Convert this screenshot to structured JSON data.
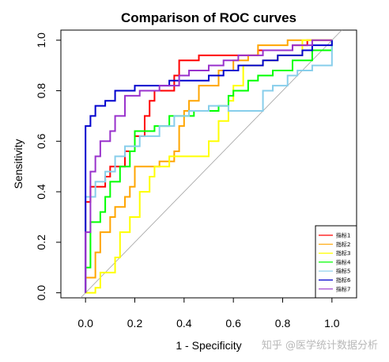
{
  "chart_data": {
    "type": "line",
    "title": "Comparison of ROC curves",
    "xlabel": "1 - Specificity",
    "ylabel": "Sensitivity",
    "xlim": [
      -0.1,
      1.1
    ],
    "ylim": [
      -0.02,
      1.04
    ],
    "x_ticks": [
      "0.0",
      "0.2",
      "0.4",
      "0.6",
      "0.8",
      "1.0"
    ],
    "y_ticks": [
      "0.0",
      "0.2",
      "0.4",
      "0.6",
      "0.8",
      "1.0"
    ],
    "x_tick_values": [
      0,
      0.2,
      0.4,
      0.6,
      0.8,
      1.0
    ],
    "y_tick_values": [
      0,
      0.2,
      0.4,
      0.6,
      0.8,
      1.0
    ],
    "reference_line": "diagonal",
    "legend_placement": "bottom-right",
    "series": [
      {
        "name": "指标1",
        "color": "#ff0000",
        "points": [
          [
            0,
            0
          ],
          [
            0,
            0.36
          ],
          [
            0.02,
            0.36
          ],
          [
            0.02,
            0.42
          ],
          [
            0.08,
            0.42
          ],
          [
            0.08,
            0.46
          ],
          [
            0.1,
            0.46
          ],
          [
            0.1,
            0.5
          ],
          [
            0.16,
            0.5
          ],
          [
            0.16,
            0.56
          ],
          [
            0.2,
            0.56
          ],
          [
            0.2,
            0.62
          ],
          [
            0.24,
            0.62
          ],
          [
            0.24,
            0.7
          ],
          [
            0.26,
            0.7
          ],
          [
            0.26,
            0.76
          ],
          [
            0.28,
            0.76
          ],
          [
            0.28,
            0.8
          ],
          [
            0.36,
            0.8
          ],
          [
            0.36,
            0.86
          ],
          [
            0.38,
            0.86
          ],
          [
            0.38,
            0.92
          ],
          [
            0.46,
            0.92
          ],
          [
            0.46,
            0.94
          ],
          [
            0.7,
            0.94
          ],
          [
            0.7,
            0.96
          ],
          [
            0.84,
            0.96
          ],
          [
            0.84,
            0.98
          ],
          [
            0.9,
            0.98
          ],
          [
            0.9,
            1.0
          ],
          [
            1.0,
            1.0
          ]
        ]
      },
      {
        "name": "指标2",
        "color": "#ffa500",
        "points": [
          [
            0,
            0
          ],
          [
            0,
            0.06
          ],
          [
            0.04,
            0.06
          ],
          [
            0.04,
            0.16
          ],
          [
            0.06,
            0.16
          ],
          [
            0.06,
            0.24
          ],
          [
            0.1,
            0.24
          ],
          [
            0.1,
            0.3
          ],
          [
            0.12,
            0.3
          ],
          [
            0.12,
            0.34
          ],
          [
            0.16,
            0.34
          ],
          [
            0.16,
            0.38
          ],
          [
            0.18,
            0.38
          ],
          [
            0.18,
            0.42
          ],
          [
            0.2,
            0.42
          ],
          [
            0.2,
            0.5
          ],
          [
            0.3,
            0.5
          ],
          [
            0.3,
            0.52
          ],
          [
            0.36,
            0.52
          ],
          [
            0.36,
            0.56
          ],
          [
            0.38,
            0.56
          ],
          [
            0.38,
            0.66
          ],
          [
            0.4,
            0.66
          ],
          [
            0.4,
            0.72
          ],
          [
            0.42,
            0.72
          ],
          [
            0.42,
            0.76
          ],
          [
            0.46,
            0.76
          ],
          [
            0.46,
            0.82
          ],
          [
            0.54,
            0.82
          ],
          [
            0.54,
            0.88
          ],
          [
            0.6,
            0.88
          ],
          [
            0.6,
            0.92
          ],
          [
            0.66,
            0.92
          ],
          [
            0.66,
            0.94
          ],
          [
            0.7,
            0.94
          ],
          [
            0.7,
            0.98
          ],
          [
            0.82,
            0.98
          ],
          [
            0.82,
            1.0
          ],
          [
            1.0,
            1.0
          ]
        ]
      },
      {
        "name": "指标3",
        "color": "#ffff00",
        "points": [
          [
            0,
            0
          ],
          [
            0.04,
            0
          ],
          [
            0.04,
            0.02
          ],
          [
            0.06,
            0.02
          ],
          [
            0.06,
            0.08
          ],
          [
            0.12,
            0.08
          ],
          [
            0.12,
            0.14
          ],
          [
            0.14,
            0.14
          ],
          [
            0.14,
            0.24
          ],
          [
            0.18,
            0.24
          ],
          [
            0.18,
            0.3
          ],
          [
            0.22,
            0.3
          ],
          [
            0.22,
            0.4
          ],
          [
            0.26,
            0.4
          ],
          [
            0.26,
            0.46
          ],
          [
            0.28,
            0.46
          ],
          [
            0.28,
            0.5
          ],
          [
            0.34,
            0.5
          ],
          [
            0.34,
            0.54
          ],
          [
            0.5,
            0.54
          ],
          [
            0.5,
            0.6
          ],
          [
            0.54,
            0.6
          ],
          [
            0.54,
            0.68
          ],
          [
            0.58,
            0.68
          ],
          [
            0.58,
            0.76
          ],
          [
            0.6,
            0.76
          ],
          [
            0.6,
            0.82
          ],
          [
            0.64,
            0.82
          ],
          [
            0.64,
            0.9
          ],
          [
            0.72,
            0.9
          ],
          [
            0.72,
            0.92
          ],
          [
            0.78,
            0.92
          ],
          [
            0.78,
            0.94
          ],
          [
            0.88,
            0.94
          ],
          [
            0.88,
            1.0
          ],
          [
            1.0,
            1.0
          ]
        ]
      },
      {
        "name": "指标4",
        "color": "#00ff00",
        "points": [
          [
            0,
            0
          ],
          [
            0,
            0.1
          ],
          [
            0.02,
            0.1
          ],
          [
            0.02,
            0.28
          ],
          [
            0.06,
            0.28
          ],
          [
            0.06,
            0.32
          ],
          [
            0.08,
            0.32
          ],
          [
            0.08,
            0.38
          ],
          [
            0.1,
            0.38
          ],
          [
            0.1,
            0.44
          ],
          [
            0.14,
            0.44
          ],
          [
            0.14,
            0.5
          ],
          [
            0.18,
            0.5
          ],
          [
            0.18,
            0.56
          ],
          [
            0.2,
            0.56
          ],
          [
            0.2,
            0.64
          ],
          [
            0.28,
            0.64
          ],
          [
            0.28,
            0.66
          ],
          [
            0.34,
            0.66
          ],
          [
            0.34,
            0.7
          ],
          [
            0.44,
            0.7
          ],
          [
            0.44,
            0.72
          ],
          [
            0.54,
            0.72
          ],
          [
            0.54,
            0.74
          ],
          [
            0.58,
            0.74
          ],
          [
            0.58,
            0.78
          ],
          [
            0.6,
            0.78
          ],
          [
            0.6,
            0.8
          ],
          [
            0.66,
            0.8
          ],
          [
            0.66,
            0.84
          ],
          [
            0.7,
            0.84
          ],
          [
            0.7,
            0.86
          ],
          [
            0.76,
            0.86
          ],
          [
            0.76,
            0.88
          ],
          [
            0.84,
            0.88
          ],
          [
            0.84,
            0.92
          ],
          [
            0.92,
            0.92
          ],
          [
            0.92,
            0.96
          ],
          [
            1.0,
            0.96
          ],
          [
            1.0,
            1.0
          ]
        ]
      },
      {
        "name": "指标5",
        "color": "#87ceeb",
        "points": [
          [
            0,
            0
          ],
          [
            0,
            0.38
          ],
          [
            0.04,
            0.38
          ],
          [
            0.04,
            0.44
          ],
          [
            0.08,
            0.44
          ],
          [
            0.08,
            0.48
          ],
          [
            0.12,
            0.48
          ],
          [
            0.12,
            0.54
          ],
          [
            0.16,
            0.54
          ],
          [
            0.16,
            0.58
          ],
          [
            0.22,
            0.58
          ],
          [
            0.22,
            0.62
          ],
          [
            0.3,
            0.62
          ],
          [
            0.3,
            0.66
          ],
          [
            0.36,
            0.66
          ],
          [
            0.36,
            0.7
          ],
          [
            0.42,
            0.7
          ],
          [
            0.42,
            0.72
          ],
          [
            0.5,
            0.72
          ],
          [
            0.5,
            0.74
          ],
          [
            0.58,
            0.74
          ],
          [
            0.58,
            0.72
          ],
          [
            0.72,
            0.72
          ],
          [
            0.72,
            0.8
          ],
          [
            0.76,
            0.8
          ],
          [
            0.76,
            0.82
          ],
          [
            0.82,
            0.82
          ],
          [
            0.82,
            0.86
          ],
          [
            0.86,
            0.86
          ],
          [
            0.86,
            0.88
          ],
          [
            0.92,
            0.88
          ],
          [
            0.92,
            0.9
          ],
          [
            1.0,
            0.9
          ],
          [
            1.0,
            1.0
          ]
        ]
      },
      {
        "name": "指标6",
        "color": "#0000cd",
        "points": [
          [
            0,
            0
          ],
          [
            0,
            0.66
          ],
          [
            0.02,
            0.66
          ],
          [
            0.02,
            0.7
          ],
          [
            0.04,
            0.7
          ],
          [
            0.04,
            0.74
          ],
          [
            0.08,
            0.74
          ],
          [
            0.08,
            0.76
          ],
          [
            0.12,
            0.76
          ],
          [
            0.12,
            0.8
          ],
          [
            0.2,
            0.8
          ],
          [
            0.2,
            0.82
          ],
          [
            0.34,
            0.82
          ],
          [
            0.34,
            0.84
          ],
          [
            0.5,
            0.84
          ],
          [
            0.5,
            0.86
          ],
          [
            0.56,
            0.86
          ],
          [
            0.56,
            0.88
          ],
          [
            0.62,
            0.88
          ],
          [
            0.62,
            0.9
          ],
          [
            0.72,
            0.9
          ],
          [
            0.72,
            0.92
          ],
          [
            0.78,
            0.92
          ],
          [
            0.78,
            0.94
          ],
          [
            0.88,
            0.94
          ],
          [
            0.88,
            0.96
          ],
          [
            0.92,
            0.96
          ],
          [
            0.92,
            0.98
          ],
          [
            1.0,
            0.98
          ],
          [
            1.0,
            1.0
          ]
        ]
      },
      {
        "name": "指标7",
        "color": "#9932cc",
        "points": [
          [
            0,
            0
          ],
          [
            0,
            0.24
          ],
          [
            0.02,
            0.24
          ],
          [
            0.02,
            0.48
          ],
          [
            0.04,
            0.48
          ],
          [
            0.04,
            0.54
          ],
          [
            0.06,
            0.54
          ],
          [
            0.06,
            0.6
          ],
          [
            0.1,
            0.6
          ],
          [
            0.1,
            0.64
          ],
          [
            0.12,
            0.64
          ],
          [
            0.12,
            0.7
          ],
          [
            0.16,
            0.7
          ],
          [
            0.16,
            0.78
          ],
          [
            0.22,
            0.78
          ],
          [
            0.22,
            0.8
          ],
          [
            0.3,
            0.8
          ],
          [
            0.3,
            0.82
          ],
          [
            0.38,
            0.82
          ],
          [
            0.38,
            0.86
          ],
          [
            0.42,
            0.86
          ],
          [
            0.42,
            0.88
          ],
          [
            0.5,
            0.88
          ],
          [
            0.5,
            0.9
          ],
          [
            0.56,
            0.9
          ],
          [
            0.56,
            0.92
          ],
          [
            0.62,
            0.92
          ],
          [
            0.62,
            0.94
          ],
          [
            0.72,
            0.94
          ],
          [
            0.72,
            0.96
          ],
          [
            0.84,
            0.96
          ],
          [
            0.84,
            0.98
          ],
          [
            0.92,
            0.98
          ],
          [
            0.92,
            1.0
          ],
          [
            1.0,
            1.0
          ]
        ]
      }
    ]
  },
  "watermark": "知乎 @医学统计数据分析"
}
